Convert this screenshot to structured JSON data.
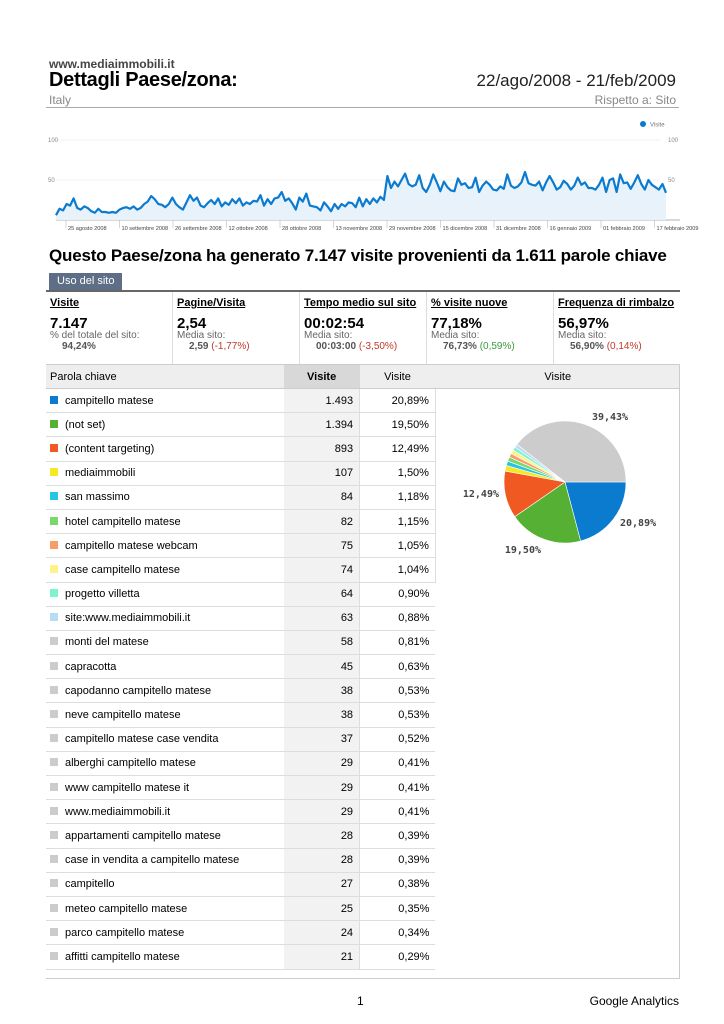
{
  "header": {
    "site_url": "www.mediaimmobili.it",
    "title": "Dettagli Paese/zona:",
    "date_range": "22/ago/2008 - 21/feb/2009",
    "country": "Italy",
    "compare": "Rispetto a: Sito"
  },
  "line_chart": {
    "legend": "Visite",
    "y_labels": [
      "100",
      "50"
    ],
    "x_labels": [
      "25 agosto 2008",
      "10 settembre 2008",
      "26 settembre 2008",
      "12 ottobre 2008",
      "28 ottobre 2008",
      "13 novembre 2008",
      "29 novembre 2008",
      "15 dicembre 2008",
      "31 dicembre 2008",
      "16 gennaio 2009",
      "01 febbraio 2009",
      "17 febbraio 2009"
    ],
    "color": "#0b7bd0",
    "ylim": [
      0,
      100
    ],
    "values": [
      6,
      14,
      12,
      20,
      18,
      27,
      15,
      13,
      17,
      15,
      11,
      9,
      14,
      10,
      10,
      9,
      10,
      9,
      13,
      15,
      16,
      14,
      17,
      13,
      15,
      20,
      23,
      30,
      26,
      20,
      19,
      16,
      20,
      28,
      20,
      16,
      13,
      22,
      31,
      24,
      28,
      18,
      16,
      21,
      25,
      20,
      27,
      17,
      22,
      19,
      26,
      21,
      27,
      18,
      22,
      20,
      24,
      23,
      31,
      18,
      26,
      20,
      27,
      28,
      35,
      24,
      27,
      21,
      13,
      28,
      23,
      33,
      18,
      17,
      16,
      12,
      22,
      17,
      11,
      20,
      14,
      20,
      17,
      22,
      21,
      16,
      28,
      17,
      26,
      20,
      27,
      22,
      29,
      25,
      55,
      40,
      48,
      42,
      50,
      58,
      45,
      42,
      44,
      56,
      40,
      35,
      44,
      57,
      47,
      36,
      48,
      41,
      37,
      36,
      52,
      44,
      46,
      40,
      41,
      53,
      35,
      43,
      48,
      44,
      38,
      37,
      42,
      39,
      57,
      43,
      40,
      42,
      47,
      60,
      46,
      44,
      43,
      48,
      37,
      47,
      55,
      47,
      38,
      41,
      49,
      45,
      38,
      43,
      53,
      44,
      47,
      40,
      40,
      38,
      44,
      53,
      35,
      50,
      52,
      35,
      57,
      46,
      47,
      39,
      47,
      56,
      45,
      38,
      50,
      44,
      41,
      38,
      45,
      34
    ]
  },
  "headline": "Questo Paese/zona ha generato 7.147 visite provenienti da 1.611 parole chiave",
  "tab_label": "Uso del sito",
  "metrics": [
    {
      "label": "Visite",
      "value": "7.147",
      "sub": "% del totale del sito:",
      "sub2": "94,24%",
      "delta": ""
    },
    {
      "label": "Pagine/Visita",
      "value": "2,54",
      "sub": "Media sito:",
      "sub2": "2,59",
      "delta": "(-1,77%)",
      "delta_type": "neg"
    },
    {
      "label": "Tempo medio sul sito",
      "value": "00:02:54",
      "sub": "Media sito:",
      "sub2": "00:03:00",
      "delta": "(-3,50%)",
      "delta_type": "neg"
    },
    {
      "label": "% visite nuove",
      "value": "77,18%",
      "sub": "Media sito:",
      "sub2": "76,73%",
      "delta": "(0,59%)",
      "delta_type": "pos"
    },
    {
      "label": "Frequenza di rimbalzo",
      "value": "56,97%",
      "sub": "Media sito:",
      "sub2": "56,90%",
      "delta": "(0,14%)",
      "delta_type": "neg"
    }
  ],
  "table": {
    "headers": {
      "keyword": "Parola chiave",
      "visits1": "Visite",
      "visits2": "Visite",
      "visits3": "Visite"
    },
    "rows": [
      {
        "kw": "campitello matese",
        "visits": "1.493",
        "pct": "20,89%",
        "color": "#0b7bd0"
      },
      {
        "kw": "(not set)",
        "visits": "1.394",
        "pct": "19,50%",
        "color": "#55b033"
      },
      {
        "kw": "(content targeting)",
        "visits": "893",
        "pct": "12,49%",
        "color": "#f05a22"
      },
      {
        "kw": "mediaimmobili",
        "visits": "107",
        "pct": "1,50%",
        "color": "#f6e823"
      },
      {
        "kw": "san massimo",
        "visits": "84",
        "pct": "1,18%",
        "color": "#28c4e4"
      },
      {
        "kw": "hotel campitello matese",
        "visits": "82",
        "pct": "1,15%",
        "color": "#78d86c"
      },
      {
        "kw": "campitello matese webcam",
        "visits": "75",
        "pct": "1,05%",
        "color": "#f89d68"
      },
      {
        "kw": "case campitello matese",
        "visits": "74",
        "pct": "1,04%",
        "color": "#fcf48a"
      },
      {
        "kw": "progetto villetta",
        "visits": "64",
        "pct": "0,90%",
        "color": "#7ef4cc"
      },
      {
        "kw": "site:www.mediaimmobili.it",
        "visits": "63",
        "pct": "0,88%",
        "color": "#b8dcf6"
      },
      {
        "kw": "monti del matese",
        "visits": "58",
        "pct": "0,81%",
        "color": "#cccccc"
      },
      {
        "kw": "capracotta",
        "visits": "45",
        "pct": "0,63%",
        "color": "#cccccc"
      },
      {
        "kw": "capodanno campitello matese",
        "visits": "38",
        "pct": "0,53%",
        "color": "#cccccc"
      },
      {
        "kw": "neve campitello matese",
        "visits": "38",
        "pct": "0,53%",
        "color": "#cccccc"
      },
      {
        "kw": "campitello matese case vendita",
        "visits": "37",
        "pct": "0,52%",
        "color": "#cccccc"
      },
      {
        "kw": "alberghi campitello matese",
        "visits": "29",
        "pct": "0,41%",
        "color": "#cccccc"
      },
      {
        "kw": "www campitello matese it",
        "visits": "29",
        "pct": "0,41%",
        "color": "#cccccc"
      },
      {
        "kw": "www.mediaimmobili.it",
        "visits": "29",
        "pct": "0,41%",
        "color": "#cccccc"
      },
      {
        "kw": "appartamenti campitello matese",
        "visits": "28",
        "pct": "0,39%",
        "color": "#cccccc"
      },
      {
        "kw": "case in vendita a campitello matese",
        "visits": "28",
        "pct": "0,39%",
        "color": "#cccccc"
      },
      {
        "kw": "campitello",
        "visits": "27",
        "pct": "0,38%",
        "color": "#cccccc"
      },
      {
        "kw": "meteo campitello matese",
        "visits": "25",
        "pct": "0,35%",
        "color": "#cccccc"
      },
      {
        "kw": "parco campitello matese",
        "visits": "24",
        "pct": "0,34%",
        "color": "#cccccc"
      },
      {
        "kw": "affitti campitello matese",
        "visits": "21",
        "pct": "0,29%",
        "color": "#cccccc"
      }
    ]
  },
  "chart_data": {
    "type": "pie",
    "slices": [
      {
        "label": "20,89%",
        "value": 20.89,
        "color": "#0b7bd0"
      },
      {
        "label": "19,50%",
        "value": 19.5,
        "color": "#55b033"
      },
      {
        "label": "12,49%",
        "value": 12.49,
        "color": "#f05a22"
      },
      {
        "value": 1.5,
        "color": "#f6e823"
      },
      {
        "value": 1.18,
        "color": "#28c4e4"
      },
      {
        "value": 1.15,
        "color": "#78d86c"
      },
      {
        "value": 1.05,
        "color": "#f89d68"
      },
      {
        "value": 1.04,
        "color": "#fcf48a"
      },
      {
        "value": 0.9,
        "color": "#7ef4cc"
      },
      {
        "value": 0.88,
        "color": "#b8dcf6"
      },
      {
        "label": "39,43%",
        "value": 39.43,
        "color": "#cccccc"
      }
    ]
  },
  "footer": {
    "page": "1",
    "brand": "Google Analytics"
  }
}
